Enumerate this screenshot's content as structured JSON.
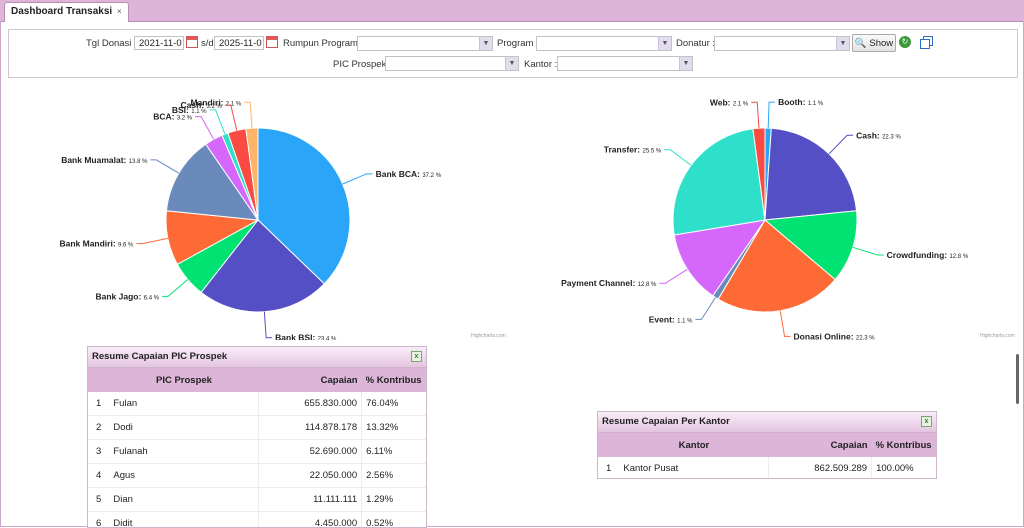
{
  "tab": {
    "title": "Dashboard Transaksi",
    "close": "×"
  },
  "filters": {
    "tgl_label": "Tgl Donasi :",
    "date_from": "2021-11-0",
    "sep": "s/d",
    "date_to": "2025-11-0",
    "rumpun_label": "Rumpun Program :",
    "program_label": "Program :",
    "donatur_label": "Donatur :",
    "pic_label": "PIC Prospek :",
    "kantor_label": "Kantor :",
    "show_label": "Show"
  },
  "colors": {
    "accent": "#dcb5d8",
    "header": "#e4c4e0"
  },
  "chart_data": [
    {
      "type": "pie",
      "title": "",
      "credit": "Highcharts.com",
      "labels": [
        "Bank BCA",
        "Bank BSI",
        "Bank Jago",
        "Bank Mandiri",
        "Bank Muamalat",
        "BCA",
        "BSI",
        "Cash",
        "Mandiri"
      ],
      "values": [
        37.2,
        23.4,
        6.4,
        9.6,
        13.8,
        3.2,
        1.1,
        3.2,
        2.1
      ],
      "value_labels": [
        "37.2 %",
        "23.4 %",
        "6.4 %",
        "9.6 %",
        "13.8 %",
        "3.2 %",
        "1.1 %",
        "3.2 %",
        "2.1 %"
      ],
      "colors": [
        "#2ba5f7",
        "#544fc5",
        "#00e272",
        "#fe6a35",
        "#6b8abc",
        "#d568fb",
        "#2ee0ca",
        "#fa4b42",
        "#feb56a"
      ]
    },
    {
      "type": "pie",
      "title": "",
      "credit": "Highcharts.com",
      "labels": [
        "Booth",
        "Cash",
        "Crowdfunding",
        "Donasi Online",
        "Event",
        "Payment Channel",
        "Transfer",
        "Web"
      ],
      "values": [
        1.1,
        22.3,
        12.8,
        22.3,
        1.1,
        12.8,
        25.5,
        2.1
      ],
      "value_labels": [
        "1.1 %",
        "22.3 %",
        "12.8 %",
        "22.3 %",
        "1.1 %",
        "12.8 %",
        "25.5 %",
        "2.1 %"
      ],
      "colors": [
        "#2ba5f7",
        "#544fc5",
        "#00e272",
        "#fe6a35",
        "#6b8abc",
        "#d568fb",
        "#2ee0ca",
        "#fa4b42"
      ]
    }
  ],
  "pic_table": {
    "title": "Resume Capaian PIC Prospek",
    "headers": [
      "PIC Prospek",
      "Capaian",
      "% Kontribus"
    ],
    "rows": [
      {
        "no": "1",
        "name": "Fulan",
        "capaian": "655.830.000",
        "pct": "76.04%"
      },
      {
        "no": "2",
        "name": "Dodi",
        "capaian": "114.878.178",
        "pct": "13.32%"
      },
      {
        "no": "3",
        "name": "Fulanah",
        "capaian": "52.690.000",
        "pct": "6.11%"
      },
      {
        "no": "4",
        "name": "Agus",
        "capaian": "22.050.000",
        "pct": "2.56%"
      },
      {
        "no": "5",
        "name": "Dian",
        "capaian": "11.111.111",
        "pct": "1.29%"
      },
      {
        "no": "6",
        "name": "Didit",
        "capaian": "4.450.000",
        "pct": "0.52%"
      }
    ]
  },
  "kantor_table": {
    "title": "Resume Capaian Per Kantor",
    "headers": [
      "Kantor",
      "Capaian",
      "% Kontribus"
    ],
    "rows": [
      {
        "no": "1",
        "name": "Kantor Pusat",
        "capaian": "862.509.289",
        "pct": "100.00%"
      }
    ]
  }
}
